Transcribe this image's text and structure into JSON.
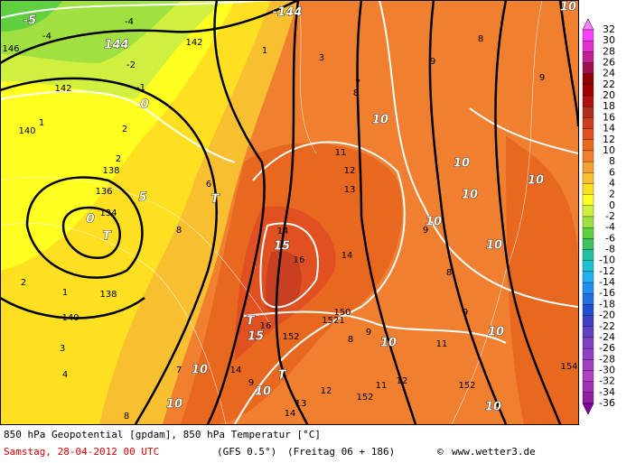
{
  "map": {
    "labels": [
      "-5",
      "-4",
      "-4",
      "-144",
      "144",
      "142",
      "146",
      "1",
      "-2",
      "-1",
      "0",
      "142",
      "1",
      "140",
      "2",
      "138",
      "2",
      "136",
      "5",
      "0",
      "134",
      "T",
      "6",
      "T",
      "8",
      "2",
      "1",
      "138",
      "140",
      "3",
      "4",
      "7",
      "10",
      "10",
      "10",
      "10",
      "11",
      "12",
      "13",
      "14",
      "15",
      "16",
      "14",
      "10",
      "10",
      "9",
      "10",
      "10",
      "10",
      "9",
      "9",
      "8",
      "7",
      "8",
      "3",
      "T",
      "15",
      "16",
      "152",
      "150",
      "1521",
      "8",
      "9",
      "10",
      "11",
      "10",
      "8",
      "9",
      "T",
      "14",
      "10",
      "9",
      "12",
      "13",
      "14",
      "11",
      "152",
      "12",
      "152",
      "10",
      "154",
      "8"
    ],
    "colorbar": {
      "ticks": [
        32,
        30,
        28,
        26,
        24,
        22,
        20,
        18,
        16,
        14,
        12,
        10,
        8,
        6,
        4,
        2,
        0,
        -2,
        -4,
        -6,
        -8,
        -10,
        -12,
        -14,
        -16,
        -18,
        -20,
        -22,
        -24,
        -26,
        -28,
        -30,
        -32,
        -34,
        -36
      ],
      "colors": [
        "#ff80ff",
        "#ff40ff",
        "#e030d0",
        "#c02090",
        "#a01050",
        "#900000",
        "#a00000",
        "#b01010",
        "#b03020",
        "#c84020",
        "#e05020",
        "#e86820",
        "#f08030",
        "#f4a030",
        "#f8c030",
        "#ffe020",
        "#ffff20",
        "#d0f040",
        "#a0e040",
        "#60d040",
        "#40c060",
        "#20c0a0",
        "#20c0d0",
        "#20b0f0",
        "#2090f0",
        "#2070e0",
        "#2050d0",
        "#4040c0",
        "#6040c0",
        "#8040c0",
        "#9040c0",
        "#a040c0",
        "#b040c0",
        "#a030b0",
        "#9020a0",
        "#8000a0"
      ]
    }
  },
  "footer": {
    "line1": "850 hPa Geopotential [gpdam], 850 hPa Temperatur [°C]",
    "date": "Samstag, 28-04-2012  00 UTC",
    "model": "(GFS 0.5°)",
    "run": "(Freitag 06 + 186)",
    "copyright": "©",
    "site": "www.wetter3.de"
  }
}
